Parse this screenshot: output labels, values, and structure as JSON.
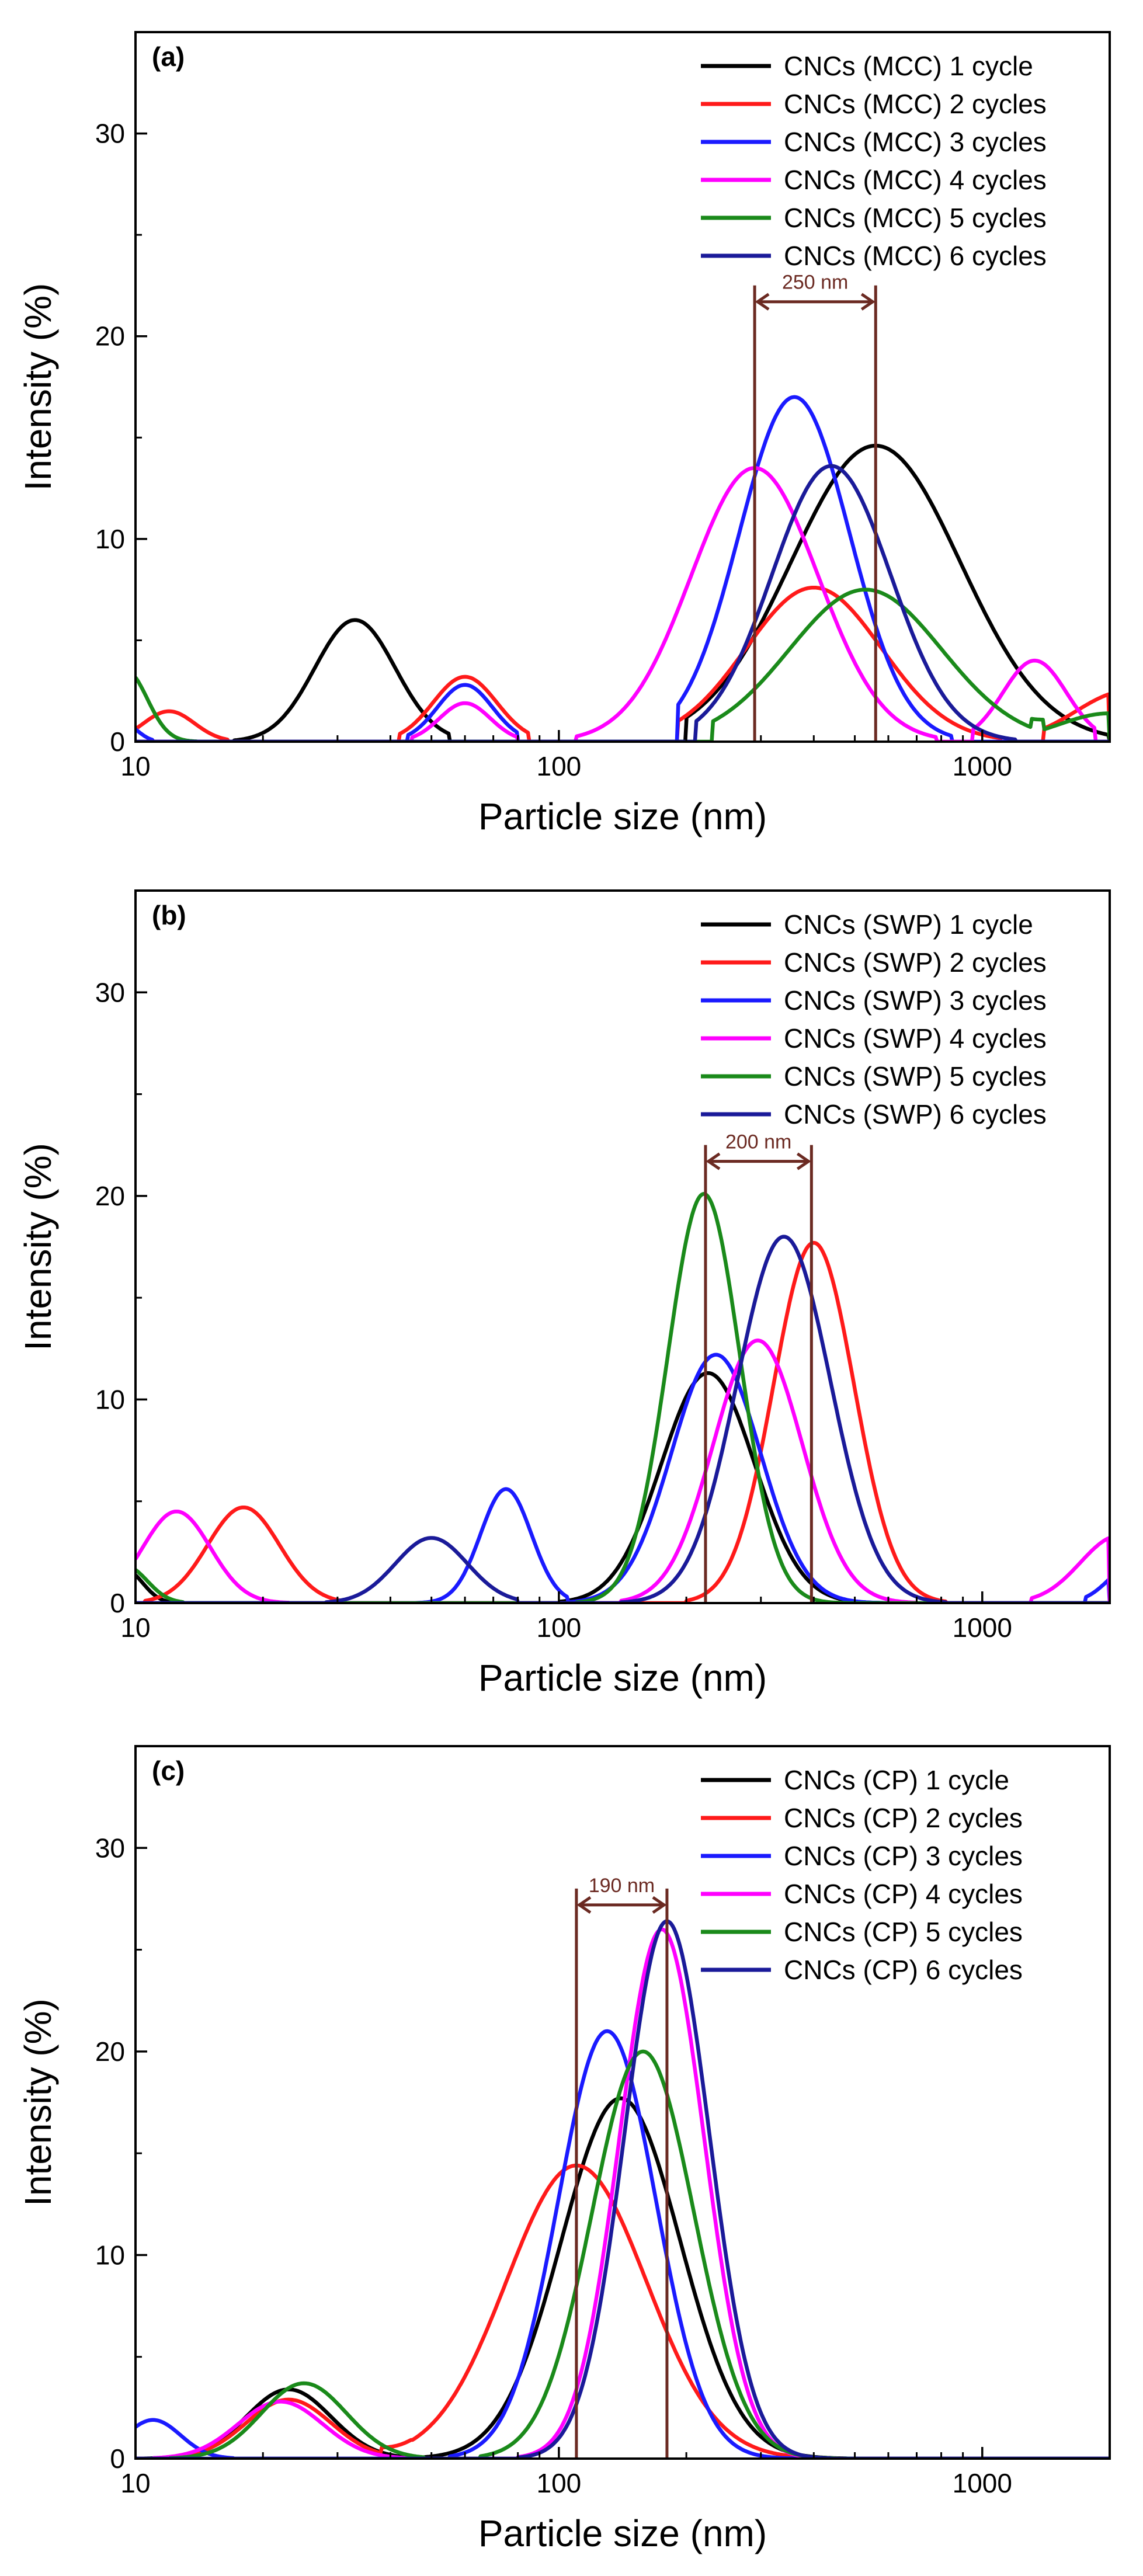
{
  "chart_data": [
    {
      "type": "line",
      "panel_label": "(a)",
      "xlabel": "Particle size (nm)",
      "ylabel": "Intensity (%)",
      "xscale": "log",
      "xlim": [
        10,
        2000
      ],
      "ylim": [
        0,
        35
      ],
      "x_ticks": [
        10,
        100,
        1000
      ],
      "x_tick_labels": [
        "10",
        "100",
        "1000"
      ],
      "y_ticks": [
        0,
        10,
        20,
        30
      ],
      "y_tick_labels": [
        "0",
        "10",
        "20",
        "30"
      ],
      "grid": false,
      "legend_position": "top-right",
      "annotation": {
        "text": "250 nm",
        "x1": 290,
        "x2": 560,
        "y": 21.7
      },
      "series": [
        {
          "name": "CNCs (MCC) 1 cycle",
          "color": "#000000",
          "peaks": [
            {
              "center": 33,
              "height": 6.0,
              "width": 0.095,
              "from": 17,
              "to": 55
            },
            {
              "center": 560,
              "height": 14.6,
              "width": 0.2,
              "from": 200,
              "to": 2000
            }
          ]
        },
        {
          "name": "CNCs (MCC) 2 cycles",
          "color": "#ff1a1a",
          "peaks": [
            {
              "center": 12,
              "height": 1.5,
              "width": 0.06,
              "from": 10,
              "to": 16.5
            },
            {
              "center": 60,
              "height": 3.2,
              "width": 0.075,
              "from": 42,
              "to": 85
            },
            {
              "center": 400,
              "height": 7.6,
              "width": 0.16,
              "from": 190,
              "to": 1100
            },
            {
              "center": 2200,
              "height": 2.5,
              "width": 0.12,
              "from": 1400,
              "to": 2000
            }
          ]
        },
        {
          "name": "CNCs (MCC) 3 cycles",
          "color": "#1a1aff",
          "peaks": [
            {
              "center": 9.5,
              "height": 0.8,
              "width": 0.03,
              "from": 10,
              "to": 11
            },
            {
              "center": 60,
              "height": 2.8,
              "width": 0.065,
              "from": 44,
              "to": 80
            },
            {
              "center": 360,
              "height": 17.0,
              "width": 0.13,
              "from": 190,
              "to": 850
            }
          ]
        },
        {
          "name": "CNCs (MCC) 4 cycles",
          "color": "#ff00ff",
          "peaks": [
            {
              "center": 60,
              "height": 1.9,
              "width": 0.06,
              "from": 45,
              "to": 80
            },
            {
              "center": 290,
              "height": 13.5,
              "width": 0.15,
              "from": 110,
              "to": 780
            },
            {
              "center": 1330,
              "height": 4.0,
              "width": 0.075,
              "from": 950,
              "to": 1850
            }
          ]
        },
        {
          "name": "CNCs (MCC) 5 cycles",
          "color": "#1a8a1a",
          "peaks": [
            {
              "center": 9.5,
              "height": 3.5,
              "width": 0.05,
              "from": 10,
              "to": 14
            },
            {
              "center": 530,
              "height": 7.5,
              "width": 0.18,
              "from": 230,
              "to": 1400
            },
            {
              "center": 2000,
              "height": 1.4,
              "width": 0.12,
              "from": 1300,
              "to": 2000
            }
          ]
        },
        {
          "name": "CNCs (MCC) 6 cycles",
          "color": "#1a1a99",
          "peaks": [
            {
              "center": 440,
              "height": 13.6,
              "width": 0.14,
              "from": 210,
              "to": 1200
            }
          ]
        }
      ]
    },
    {
      "type": "line",
      "panel_label": "(b)",
      "xlabel": "Particle size (nm)",
      "ylabel": "Intensity (%)",
      "xscale": "log",
      "xlim": [
        10,
        2000
      ],
      "ylim": [
        0,
        35
      ],
      "x_ticks": [
        10,
        100,
        1000
      ],
      "x_tick_labels": [
        "10",
        "100",
        "1000"
      ],
      "y_ticks": [
        0,
        10,
        20,
        30
      ],
      "y_tick_labels": [
        "0",
        "10",
        "20",
        "30"
      ],
      "grid": false,
      "legend_position": "top-right",
      "annotation": {
        "text": "200 nm",
        "x1": 222,
        "x2": 395,
        "y": 21.7
      },
      "series": [
        {
          "name": "CNCs (SWP) 1 cycle",
          "color": "#000000",
          "peaks": [
            {
              "center": 9.5,
              "height": 1.6,
              "width": 0.04,
              "from": 10,
              "to": 12
            },
            {
              "center": 225,
              "height": 11.3,
              "width": 0.11,
              "from": 100,
              "to": 600
            }
          ]
        },
        {
          "name": "CNCs (SWP) 2 cycles",
          "color": "#ff1a1a",
          "peaks": [
            {
              "center": 18,
              "height": 4.7,
              "width": 0.085,
              "from": 10.5,
              "to": 31
            },
            {
              "center": 400,
              "height": 17.7,
              "width": 0.095,
              "from": 200,
              "to": 820
            }
          ]
        },
        {
          "name": "CNCs (SWP) 3 cycles",
          "color": "#1a1aff",
          "peaks": [
            {
              "center": 75,
              "height": 5.6,
              "width": 0.06,
              "from": 38,
              "to": 105
            },
            {
              "center": 235,
              "height": 12.2,
              "width": 0.105,
              "from": 105,
              "to": 600
            },
            {
              "center": 2300,
              "height": 2.0,
              "width": 0.06,
              "from": 1750,
              "to": 2000
            }
          ]
        },
        {
          "name": "CNCs (SWP) 4 cycles",
          "color": "#ff00ff",
          "peaks": [
            {
              "center": 12.5,
              "height": 4.5,
              "width": 0.08,
              "from": 10,
              "to": 23
            },
            {
              "center": 295,
              "height": 12.9,
              "width": 0.105,
              "from": 140,
              "to": 700
            },
            {
              "center": 2100,
              "height": 3.3,
              "width": 0.09,
              "from": 1300,
              "to": 2000
            }
          ]
        },
        {
          "name": "CNCs (SWP) 5 cycles",
          "color": "#1a8a1a",
          "peaks": [
            {
              "center": 9.5,
              "height": 1.8,
              "width": 0.05,
              "from": 10,
              "to": 13
            },
            {
              "center": 220,
              "height": 20.1,
              "width": 0.085,
              "from": 110,
              "to": 480
            }
          ]
        },
        {
          "name": "CNCs (SWP) 6 cycles",
          "color": "#1a1a99",
          "peaks": [
            {
              "center": 50,
              "height": 3.2,
              "width": 0.085,
              "from": 28,
              "to": 80
            },
            {
              "center": 340,
              "height": 18.0,
              "width": 0.11,
              "from": 140,
              "to": 820
            }
          ]
        }
      ]
    },
    {
      "type": "line",
      "panel_label": "(c)",
      "xlabel": "Particle size (nm)",
      "ylabel": "Intensity (%)",
      "xscale": "log",
      "xlim": [
        10,
        2000
      ],
      "ylim": [
        0,
        35
      ],
      "x_ticks": [
        10,
        100,
        1000
      ],
      "x_tick_labels": [
        "10",
        "100",
        "1000"
      ],
      "y_ticks": [
        0,
        10,
        20,
        30
      ],
      "y_tick_labels": [
        "0",
        "10",
        "20",
        "30"
      ],
      "grid": false,
      "legend_position": "top-right",
      "annotation": {
        "text": "190 nm",
        "x1": 110,
        "x2": 180,
        "y": 27.2
      },
      "series": [
        {
          "name": "CNCs (CP) 1 cycle",
          "color": "#000000",
          "peaks": [
            {
              "center": 23,
              "height": 3.4,
              "width": 0.1,
              "from": 10,
              "to": 45
            },
            {
              "center": 140,
              "height": 17.7,
              "width": 0.14,
              "from": 45,
              "to": 480
            }
          ]
        },
        {
          "name": "CNCs (CP) 2 cycles",
          "color": "#ff1a1a",
          "peaks": [
            {
              "center": 23,
              "height": 2.9,
              "width": 0.1,
              "from": 12,
              "to": 45
            },
            {
              "center": 110,
              "height": 14.4,
              "width": 0.165,
              "from": 38,
              "to": 500
            }
          ]
        },
        {
          "name": "CNCs (CP) 3 cycles",
          "color": "#1a1aff",
          "peaks": [
            {
              "center": 11,
              "height": 1.9,
              "width": 0.065,
              "from": 10,
              "to": 17
            },
            {
              "center": 130,
              "height": 21.0,
              "width": 0.115,
              "from": 55,
              "to": 420
            }
          ]
        },
        {
          "name": "CNCs (CP) 4 cycles",
          "color": "#ff00ff",
          "peaks": [
            {
              "center": 22,
              "height": 2.8,
              "width": 0.1,
              "from": 11,
              "to": 44
            },
            {
              "center": 175,
              "height": 26.0,
              "width": 0.1,
              "from": 80,
              "to": 420
            }
          ]
        },
        {
          "name": "CNCs (CP) 5 cycles",
          "color": "#1a8a1a",
          "peaks": [
            {
              "center": 25,
              "height": 3.7,
              "width": 0.1,
              "from": 12,
              "to": 48
            },
            {
              "center": 158,
              "height": 20.0,
              "width": 0.12,
              "from": 65,
              "to": 520
            }
          ]
        },
        {
          "name": "CNCs (CP) 6 cycles",
          "color": "#1a1a99",
          "peaks": [
            {
              "center": 180,
              "height": 26.4,
              "width": 0.1,
              "from": 80,
              "to": 440
            }
          ]
        }
      ]
    }
  ]
}
